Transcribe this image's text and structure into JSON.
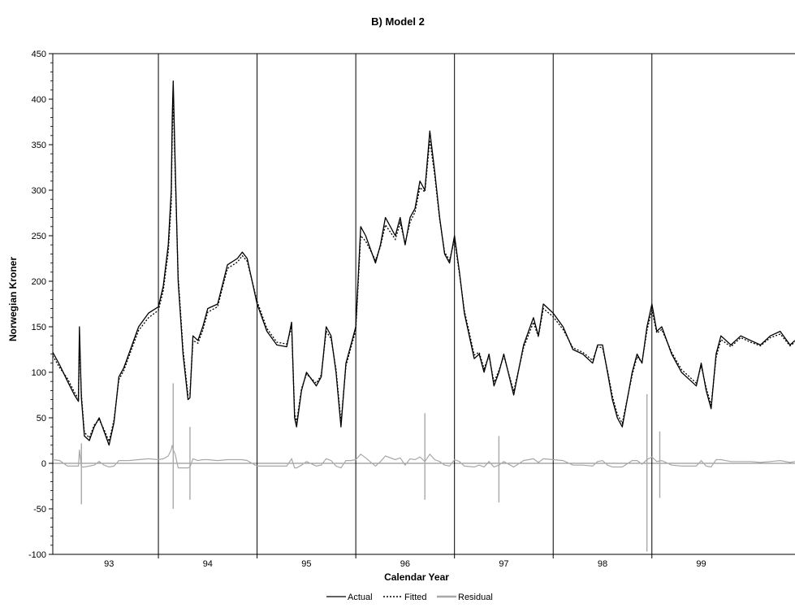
{
  "chart_data": {
    "type": "line",
    "title": "B) Model 2",
    "xlabel": "Calendar Year",
    "ylabel": "Norwegian Kroner",
    "ylim": [
      -100,
      450
    ],
    "yticks": [
      "450",
      "400",
      "350",
      "300",
      "250",
      "200",
      "150",
      "100",
      "50",
      "0",
      "-50",
      "-100"
    ],
    "ytick_values": [
      450,
      400,
      350,
      300,
      250,
      200,
      150,
      100,
      50,
      0,
      -50,
      -100
    ],
    "xlim": [
      92.43,
      99.95
    ],
    "xticks": [
      "93",
      "94",
      "95",
      "96",
      "97",
      "98",
      "99"
    ],
    "xtick_values": [
      93,
      94,
      95,
      96,
      97,
      98,
      99
    ],
    "year_separators": [
      93.5,
      94.5,
      95.5,
      96.5,
      97.5,
      98.5
    ],
    "grid": false,
    "legend_position": "bottom-center",
    "colors": {
      "actual": "#000000",
      "fitted": "#000000",
      "residual": "#a8a8a8"
    },
    "series": [
      {
        "name": "Actual",
        "style": "solid",
        "x": [
          92.43,
          92.5,
          92.58,
          92.65,
          92.69,
          92.7,
          92.72,
          92.75,
          92.8,
          92.85,
          92.9,
          92.95,
          93.0,
          93.05,
          93.1,
          93.15,
          93.2,
          93.3,
          93.4,
          93.5,
          93.55,
          93.6,
          93.63,
          93.64,
          93.65,
          93.67,
          93.7,
          93.75,
          93.8,
          93.82,
          93.85,
          93.9,
          93.95,
          94.0,
          94.1,
          94.2,
          94.3,
          94.35,
          94.4,
          94.5,
          94.6,
          94.7,
          94.8,
          94.85,
          94.88,
          94.9,
          94.95,
          95.0,
          95.1,
          95.15,
          95.2,
          95.25,
          95.3,
          95.35,
          95.4,
          95.45,
          95.5,
          95.55,
          95.6,
          95.7,
          95.75,
          95.8,
          95.9,
          95.95,
          96.0,
          96.05,
          96.1,
          96.15,
          96.2,
          96.25,
          96.3,
          96.35,
          96.4,
          96.45,
          96.5,
          96.55,
          96.6,
          96.7,
          96.75,
          96.8,
          96.85,
          96.9,
          96.95,
          97.0,
          97.1,
          97.2,
          97.3,
          97.35,
          97.4,
          97.5,
          97.6,
          97.7,
          97.8,
          97.9,
          97.95,
          98.0,
          98.05,
          98.1,
          98.15,
          98.2,
          98.3,
          98.35,
          98.4,
          98.45,
          98.5,
          98.55,
          98.6,
          98.7,
          98.8,
          98.9,
          98.95,
          99.0,
          99.05,
          99.1,
          99.15,
          99.2,
          99.3,
          99.4,
          99.5,
          99.6,
          99.7,
          99.8,
          99.9,
          99.95
        ],
        "values": [
          122,
          108,
          90,
          75,
          68,
          150,
          72,
          30,
          25,
          40,
          50,
          35,
          20,
          45,
          95,
          105,
          120,
          150,
          165,
          172,
          195,
          240,
          300,
          380,
          420,
          330,
          200,
          120,
          70,
          72,
          140,
          135,
          150,
          170,
          175,
          218,
          225,
          232,
          225,
          175,
          145,
          130,
          128,
          155,
          50,
          40,
          80,
          100,
          85,
          95,
          150,
          140,
          100,
          40,
          110,
          130,
          150,
          260,
          250,
          220,
          240,
          270,
          250,
          270,
          240,
          270,
          280,
          310,
          300,
          365,
          320,
          270,
          230,
          220,
          250,
          210,
          165,
          115,
          120,
          100,
          120,
          85,
          100,
          120,
          75,
          130,
          160,
          140,
          175,
          165,
          150,
          125,
          120,
          110,
          130,
          130,
          100,
          70,
          50,
          40,
          100,
          120,
          110,
          150,
          175,
          145,
          150,
          120,
          100,
          90,
          85,
          110,
          80,
          60,
          120,
          140,
          130,
          140,
          135,
          130,
          140,
          145,
          130,
          135
        ]
      },
      {
        "name": "Fitted",
        "style": "dotted",
        "x": [
          92.43,
          92.5,
          92.58,
          92.65,
          92.69,
          92.7,
          92.72,
          92.75,
          92.8,
          92.85,
          92.9,
          92.95,
          93.0,
          93.05,
          93.1,
          93.15,
          93.2,
          93.3,
          93.4,
          93.5,
          93.55,
          93.6,
          93.63,
          93.64,
          93.65,
          93.67,
          93.7,
          93.75,
          93.8,
          93.82,
          93.85,
          93.9,
          93.95,
          94.0,
          94.1,
          94.2,
          94.3,
          94.35,
          94.4,
          94.5,
          94.6,
          94.7,
          94.8,
          94.85,
          94.88,
          94.9,
          94.95,
          95.0,
          95.1,
          95.15,
          95.2,
          95.25,
          95.3,
          95.35,
          95.4,
          95.45,
          95.5,
          95.55,
          95.6,
          95.7,
          95.75,
          95.8,
          95.9,
          95.95,
          96.0,
          96.05,
          96.1,
          96.15,
          96.2,
          96.25,
          96.3,
          96.35,
          96.4,
          96.45,
          96.5,
          96.55,
          96.6,
          96.7,
          96.75,
          96.8,
          96.85,
          96.9,
          96.95,
          97.0,
          97.1,
          97.2,
          97.3,
          97.35,
          97.4,
          97.5,
          97.6,
          97.7,
          97.8,
          97.9,
          97.95,
          98.0,
          98.05,
          98.1,
          98.15,
          98.2,
          98.3,
          98.35,
          98.4,
          98.45,
          98.5,
          98.55,
          98.6,
          98.7,
          98.8,
          98.9,
          98.95,
          99.0,
          99.05,
          99.1,
          99.15,
          99.2,
          99.3,
          99.4,
          99.5,
          99.6,
          99.7,
          99.8,
          99.9,
          99.95
        ],
        "values": [
          118,
          105,
          93,
          78,
          71,
          135,
          76,
          34,
          28,
          42,
          48,
          37,
          24,
          48,
          92,
          102,
          117,
          146,
          160,
          168,
          190,
          232,
          285,
          360,
          405,
          320,
          205,
          125,
          75,
          76,
          135,
          132,
          146,
          166,
          172,
          214,
          221,
          228,
          222,
          178,
          148,
          133,
          131,
          150,
          55,
          45,
          82,
          98,
          88,
          97,
          145,
          137,
          103,
          45,
          107,
          127,
          146,
          250,
          244,
          223,
          238,
          262,
          246,
          264,
          242,
          265,
          276,
          303,
          298,
          355,
          316,
          268,
          232,
          223,
          246,
          208,
          168,
          119,
          122,
          104,
          118,
          89,
          102,
          118,
          79,
          127,
          155,
          139,
          170,
          161,
          147,
          127,
          122,
          113,
          128,
          127,
          102,
          74,
          54,
          44,
          97,
          117,
          111,
          146,
          168,
          143,
          147,
          122,
          103,
          93,
          88,
          107,
          83,
          64,
          116,
          136,
          128,
          138,
          133,
          129,
          138,
          142,
          129,
          133
        ]
      },
      {
        "name": "Residual",
        "style": "solid",
        "x": [
          92.43,
          92.5,
          92.58,
          92.65,
          92.69,
          92.7,
          92.72,
          92.75,
          92.8,
          92.85,
          92.9,
          92.95,
          93.0,
          93.05,
          93.1,
          93.15,
          93.2,
          93.3,
          93.4,
          93.5,
          93.55,
          93.6,
          93.63,
          93.64,
          93.65,
          93.67,
          93.7,
          93.75,
          93.8,
          93.82,
          93.85,
          93.9,
          93.95,
          94.0,
          94.1,
          94.2,
          94.3,
          94.35,
          94.4,
          94.5,
          94.6,
          94.7,
          94.8,
          94.85,
          94.88,
          94.9,
          94.95,
          95.0,
          95.1,
          95.15,
          95.2,
          95.25,
          95.3,
          95.35,
          95.4,
          95.45,
          95.5,
          95.55,
          95.6,
          95.7,
          95.75,
          95.8,
          95.9,
          95.95,
          96.0,
          96.05,
          96.1,
          96.15,
          96.2,
          96.25,
          96.3,
          96.35,
          96.4,
          96.45,
          96.5,
          96.55,
          96.6,
          96.7,
          96.75,
          96.8,
          96.85,
          96.9,
          96.95,
          97.0,
          97.1,
          97.2,
          97.3,
          97.35,
          97.4,
          97.5,
          97.6,
          97.7,
          97.8,
          97.9,
          97.95,
          98.0,
          98.05,
          98.1,
          98.15,
          98.2,
          98.3,
          98.35,
          98.4,
          98.45,
          98.5,
          98.55,
          98.6,
          98.7,
          98.8,
          98.9,
          98.95,
          99.0,
          99.05,
          99.1,
          99.15,
          99.2,
          99.3,
          99.4,
          99.5,
          99.6,
          99.7,
          99.8,
          99.9,
          99.95
        ],
        "values": [
          4,
          3,
          -3,
          -3,
          -3,
          15,
          -4,
          -4,
          -3,
          -2,
          2,
          -2,
          -4,
          -3,
          3,
          3,
          3,
          4,
          5,
          4,
          5,
          8,
          15,
          20,
          15,
          10,
          -5,
          -5,
          -5,
          -4,
          5,
          3,
          4,
          4,
          3,
          4,
          4,
          4,
          3,
          -3,
          -3,
          -3,
          -3,
          5,
          -5,
          -5,
          -2,
          2,
          -3,
          -2,
          5,
          3,
          -3,
          -5,
          3,
          3,
          4,
          10,
          6,
          -3,
          2,
          8,
          4,
          6,
          -2,
          5,
          4,
          7,
          2,
          10,
          4,
          2,
          -2,
          -3,
          4,
          2,
          -3,
          -4,
          -2,
          -4,
          2,
          -4,
          -2,
          2,
          -4,
          3,
          5,
          1,
          5,
          4,
          3,
          -2,
          -2,
          -3,
          2,
          3,
          -2,
          -4,
          -4,
          -4,
          3,
          3,
          -1,
          4,
          7,
          2,
          3,
          -2,
          -3,
          -3,
          -3,
          3,
          -3,
          -4,
          4,
          4,
          2,
          2,
          2,
          1,
          2,
          3,
          1,
          2
        ],
        "band": [
          {
            "x": 92.72,
            "values": [
              22,
              -45
            ]
          },
          {
            "x": 93.65,
            "values": [
              88,
              -50
            ]
          },
          {
            "x": 93.82,
            "values": [
              40,
              -40
            ]
          },
          {
            "x": 96.2,
            "values": [
              55,
              -40
            ]
          },
          {
            "x": 96.95,
            "values": [
              30,
              -43
            ]
          },
          {
            "x": 98.45,
            "values": [
              76,
              -97
            ]
          },
          {
            "x": 98.58,
            "values": [
              35,
              -38
            ]
          }
        ]
      }
    ]
  }
}
